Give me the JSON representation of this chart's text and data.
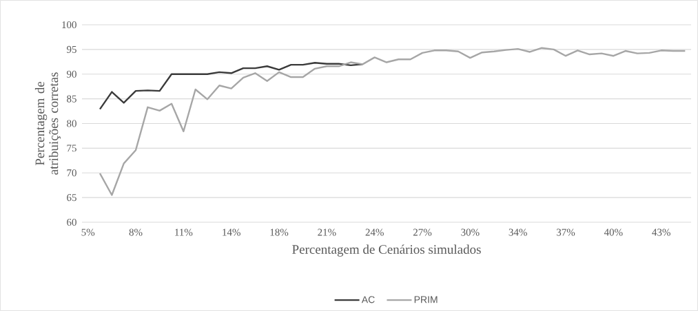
{
  "chart_data": {
    "type": "line",
    "xlabel": "Percentagem de Cenários simulados",
    "ylabel": "Percentagem de atribuições corretas",
    "categories": [
      "5%",
      null,
      null,
      null,
      "8%",
      null,
      null,
      null,
      "11%",
      null,
      null,
      null,
      "14%",
      null,
      null,
      null,
      "18%",
      null,
      null,
      null,
      "21%",
      null,
      null,
      null,
      "24%",
      null,
      null,
      null,
      "27%",
      null,
      null,
      null,
      "30%",
      null,
      null,
      null,
      "34%",
      null,
      null,
      null,
      "37%",
      null,
      null,
      null,
      "40%",
      null,
      null,
      null,
      "43%",
      null,
      null
    ],
    "series": [
      {
        "name": "AC",
        "color": "#3a3a3a",
        "values": [
          null,
          82.9,
          86.4,
          84.2,
          86.6,
          86.7,
          86.6,
          90.0,
          90.0,
          90.0,
          90.0,
          90.4,
          90.2,
          91.2,
          91.2,
          91.6,
          90.9,
          91.9,
          91.9,
          92.3,
          92.1,
          92.1,
          91.8,
          92.0,
          null,
          null,
          null,
          null,
          null,
          null,
          null,
          null,
          null,
          null,
          null,
          null,
          null,
          null,
          null,
          null,
          null,
          null,
          null,
          null,
          null,
          null,
          null,
          null,
          null,
          null,
          null
        ]
      },
      {
        "name": "PRIM",
        "color": "#a6a6a6",
        "values": [
          null,
          69.9,
          65.5,
          71.9,
          74.6,
          83.3,
          82.6,
          84.0,
          78.4,
          86.9,
          84.9,
          87.7,
          87.1,
          89.3,
          90.2,
          88.6,
          90.4,
          89.4,
          89.4,
          91.1,
          91.6,
          91.6,
          92.4,
          92.0,
          93.4,
          92.4,
          93.0,
          93.0,
          94.3,
          94.8,
          94.8,
          94.6,
          93.3,
          94.4,
          94.6,
          94.9,
          95.1,
          94.5,
          95.3,
          95.0,
          93.7,
          94.8,
          94.0,
          94.2,
          93.7,
          94.7,
          94.2,
          94.3,
          94.8,
          94.7,
          94.7
        ]
      }
    ],
    "ylim": [
      60,
      100
    ],
    "yticks": [
      60,
      65,
      70,
      75,
      80,
      85,
      90,
      95,
      100
    ],
    "grid": "y",
    "legend": "bottom",
    "marker": "none",
    "line_style": "solid"
  }
}
